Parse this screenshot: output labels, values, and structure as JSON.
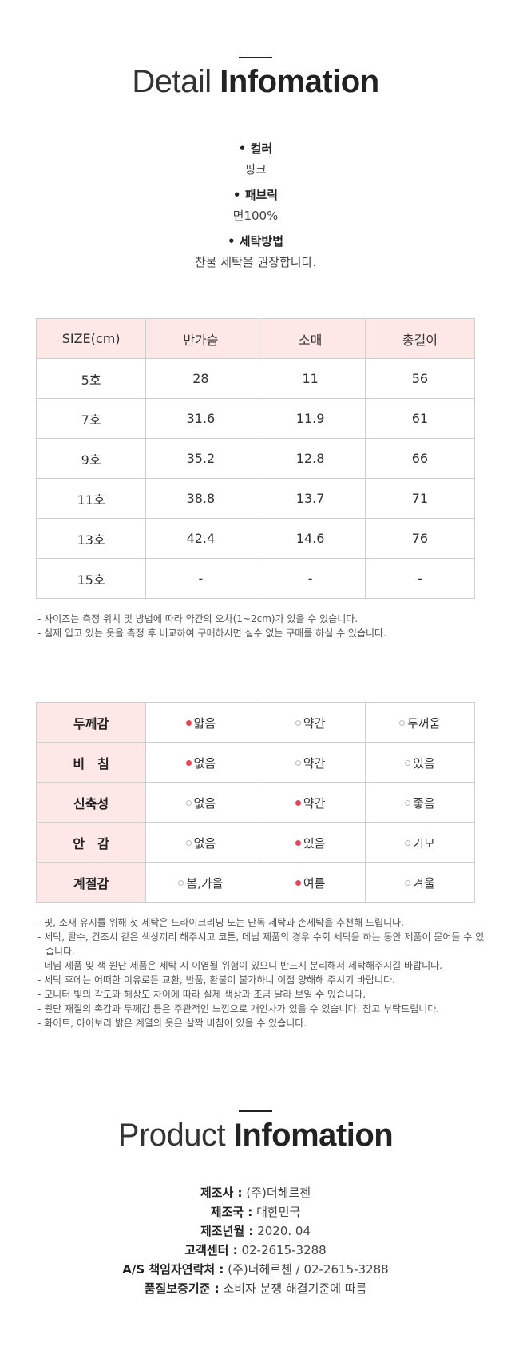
{
  "detail": {
    "title_light": "Detail",
    "title_bold": "Infomation",
    "specs": [
      {
        "label": "• 컬러",
        "value": "핑크"
      },
      {
        "label": "• 패브릭",
        "value": "면100%"
      },
      {
        "label": "• 세탁방법",
        "value": "찬물 세탁을 권장합니다."
      }
    ]
  },
  "size_table": {
    "headers": [
      "SIZE(cm)",
      "반가슴",
      "소매",
      "총길이"
    ],
    "rows": [
      [
        "5호",
        "28",
        "11",
        "56"
      ],
      [
        "7호",
        "31.6",
        "11.9",
        "61"
      ],
      [
        "9호",
        "35.2",
        "12.8",
        "66"
      ],
      [
        "11호",
        "38.8",
        "13.7",
        "71"
      ],
      [
        "13호",
        "42.4",
        "14.6",
        "76"
      ],
      [
        "15호",
        "-",
        "-",
        "-"
      ]
    ],
    "notes": [
      "- 사이즈는 측정 위치 및 방법에 따라 약간의 오차(1~2cm)가 있을 수 있습니다.",
      "- 실제 입고 있는 옷을 측정 후 비교하여 구매하시면 실수 없는 구매를 하실 수 있습니다."
    ]
  },
  "feel_table": {
    "rows": [
      {
        "key": "두께감",
        "options": [
          {
            "text": "얇음",
            "selected": true
          },
          {
            "text": "약간",
            "selected": false
          },
          {
            "text": "두꺼움",
            "selected": false
          }
        ]
      },
      {
        "key": "비　침",
        "options": [
          {
            "text": "없음",
            "selected": true
          },
          {
            "text": "약간",
            "selected": false
          },
          {
            "text": "있음",
            "selected": false
          }
        ]
      },
      {
        "key": "신축성",
        "options": [
          {
            "text": "없음",
            "selected": false
          },
          {
            "text": "약간",
            "selected": true
          },
          {
            "text": "좋음",
            "selected": false
          }
        ]
      },
      {
        "key": "안　감",
        "options": [
          {
            "text": "없음",
            "selected": false
          },
          {
            "text": "있음",
            "selected": true
          },
          {
            "text": "기모",
            "selected": false
          }
        ]
      },
      {
        "key": "계절감",
        "options": [
          {
            "text": "봄,가을",
            "selected": false
          },
          {
            "text": "여름",
            "selected": true
          },
          {
            "text": "겨울",
            "selected": false
          }
        ]
      }
    ],
    "notes": [
      "- 핏, 소재 유지를 위해 첫 세탁은 드라이크리닝 또는 단독 세탁과 손세탁을 추천해 드립니다.",
      "- 세탁, 탈수, 건조시 같은 색상끼리 해주시고 코튼, 데님 제품의 경우 수회 세탁을 하는 동안 제품이 묻어들 수 있습니다.",
      "- 데님 제품 및 색 원단 제품은 세탁 시 이염될 위험이 있으니 반드시 분리해서 세탁해주시길 바랍니다.",
      "- 세탁 후에는 어떠한 이유로든 교환, 반품, 환불이 불가하니 이점 양해해 주시기 바랍니다.",
      "- 모니터 빛의 각도와 해상도 차이에 따라 실제 색상과 조금 달라 보일 수 있습니다.",
      "- 원단 재질의 촉감과 두께감 등은 주관적인 느낌으로 개인차가 있을 수 있습니다. 참고 부탁드립니다.",
      "- 화이트, 아이보리 밝은 계열의 옷은 살짝 비침이 있을 수 있습니다."
    ]
  },
  "product": {
    "title_light": "Product",
    "title_bold": "Infomation",
    "rows": [
      {
        "label": "제조사 :",
        "value": "(주)더헤르첸"
      },
      {
        "label": "제조국 :",
        "value": "대한민국"
      },
      {
        "label": "제조년월 :",
        "value": "2020. 04"
      },
      {
        "label": "고객센터 :",
        "value": "02-2615-3288"
      },
      {
        "label": "A/S 책임자연락처 :",
        "value": "(주)더헤르첸 / 02-2615-3288"
      },
      {
        "label": "품질보증기준 :",
        "value": "소비자 분쟁 해결기준에 따름"
      }
    ]
  },
  "colors": {
    "accent_pink": "#fde7e7",
    "selected_dot": "#e8455a"
  }
}
